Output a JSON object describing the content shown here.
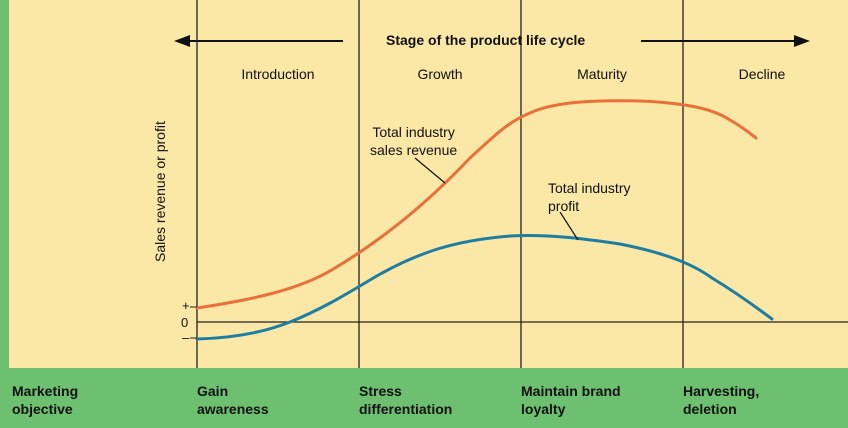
{
  "title": "Stage of the product life cycle",
  "stages": [
    "Introduction",
    "Growth",
    "Maturity",
    "Decline"
  ],
  "y_axis_label": "Sales revenue or profit",
  "y_ticks": {
    "plus": "+",
    "zero": "0",
    "minus": "–"
  },
  "curves": {
    "revenue": {
      "label_line1": "Total industry",
      "label_line2": "sales revenue",
      "color": "#e8703a"
    },
    "profit": {
      "label_line1": "Total industry",
      "label_line2": "profit",
      "color": "#1e7ea1"
    }
  },
  "objectives": {
    "row_label_line1": "Marketing",
    "row_label_line2": "objective",
    "items": [
      {
        "line1": "Gain",
        "line2": "awareness"
      },
      {
        "line1": "Stress",
        "line2": "differentiation"
      },
      {
        "line1": "Maintain brand",
        "line2": "loyalty"
      },
      {
        "line1": "Harvesting,",
        "line2": "deletion"
      }
    ]
  },
  "colors": {
    "background": "#fbe7a6",
    "left_band": "#6cc070",
    "bottom_band": "#6cc070"
  }
}
